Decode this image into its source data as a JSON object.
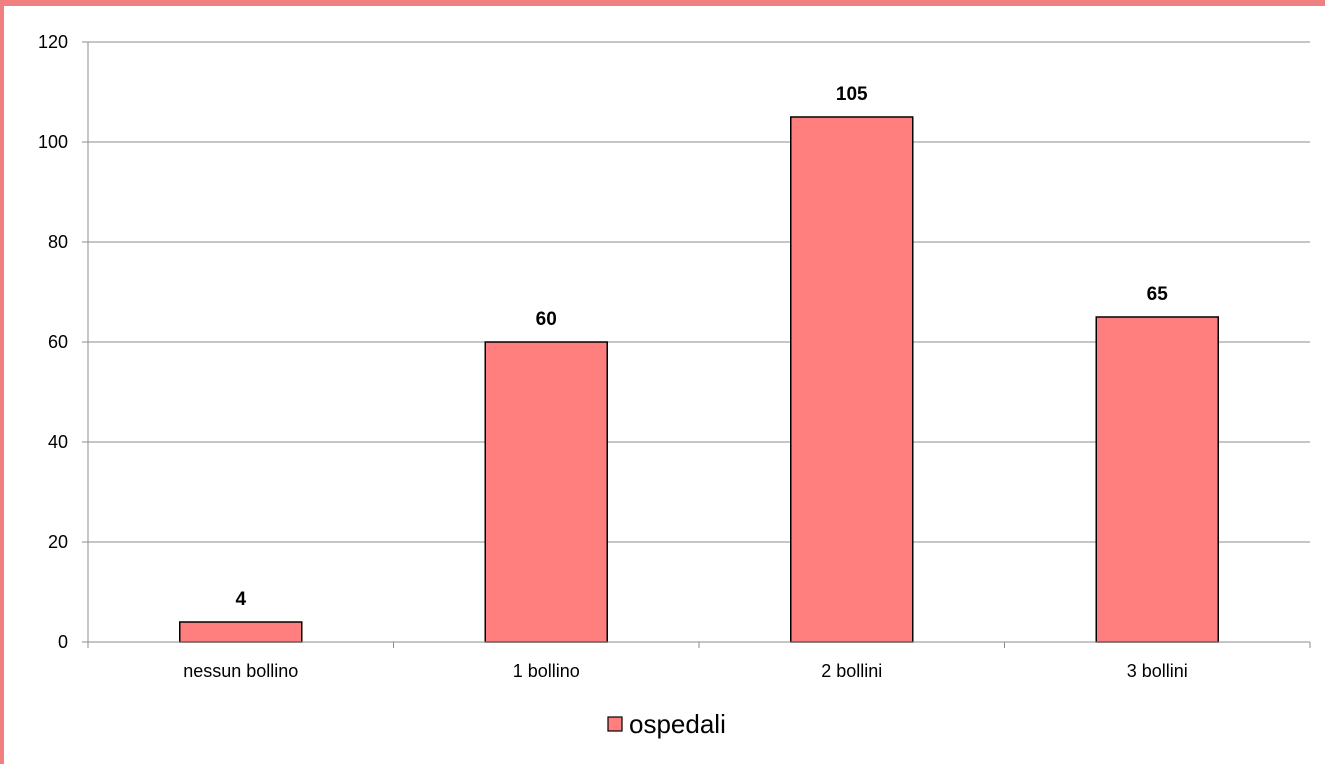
{
  "chart_data": {
    "type": "bar",
    "categories": [
      "nessun bollino",
      "1 bollino",
      "2 bollini",
      "3 bollini"
    ],
    "series": [
      {
        "name": "ospedali",
        "values": [
          4,
          60,
          105,
          65
        ],
        "color": "#ff7f7f"
      }
    ],
    "data_labels": [
      "4",
      "60",
      "105",
      "65"
    ],
    "ylim": [
      0,
      120
    ],
    "yticks": [
      0,
      20,
      40,
      60,
      80,
      100,
      120
    ],
    "ytick_labels": [
      "0",
      "20",
      "40",
      "60",
      "80",
      "100",
      "120"
    ],
    "grid": true,
    "legend_position": "bottom",
    "frame_color": "#f08080"
  }
}
